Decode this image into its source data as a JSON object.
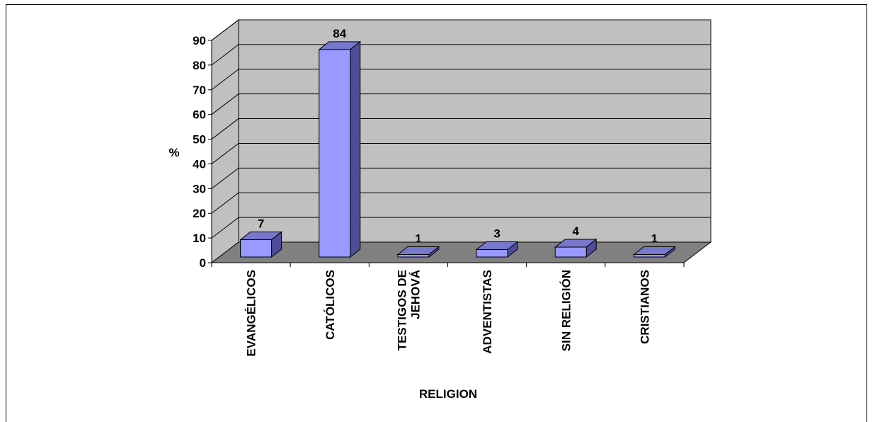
{
  "chart_data": {
    "type": "bar",
    "categories": [
      "EVANGÉLICOS",
      "CATÓLICOS",
      "TESTIGOS DE JEHOVÁ",
      "ADVENTISTAS",
      "SIN RELIGIÓN",
      "CRISTIANOS"
    ],
    "category_lines": [
      [
        "EVANGÉLICOS"
      ],
      [
        "CATÓLICOS"
      ],
      [
        "TESTIGOS DE",
        "JEHOVÁ"
      ],
      [
        "ADVENTISTAS"
      ],
      [
        "SIN RELIGIÓN"
      ],
      [
        "CRISTIANOS"
      ]
    ],
    "values": [
      7,
      84,
      1,
      3,
      4,
      1
    ],
    "data_labels": [
      "7",
      "84",
      "1",
      "3",
      "4",
      "1"
    ],
    "xlabel": "RELIGION",
    "ylabel": "%",
    "ylim": [
      0,
      90
    ],
    "yticks": [
      "0",
      "10",
      "20",
      "30",
      "40",
      "50",
      "60",
      "70",
      "80",
      "90"
    ],
    "grid": true,
    "legend": "none",
    "colors": {
      "bar_front": "#9999ff",
      "bar_top": "#7777cc",
      "bar_side": "#4d4d99",
      "back_wall": "#c0c0c0",
      "side_wall": "#c0c0c0",
      "floor": "#808080",
      "gridline": "#000000"
    }
  }
}
